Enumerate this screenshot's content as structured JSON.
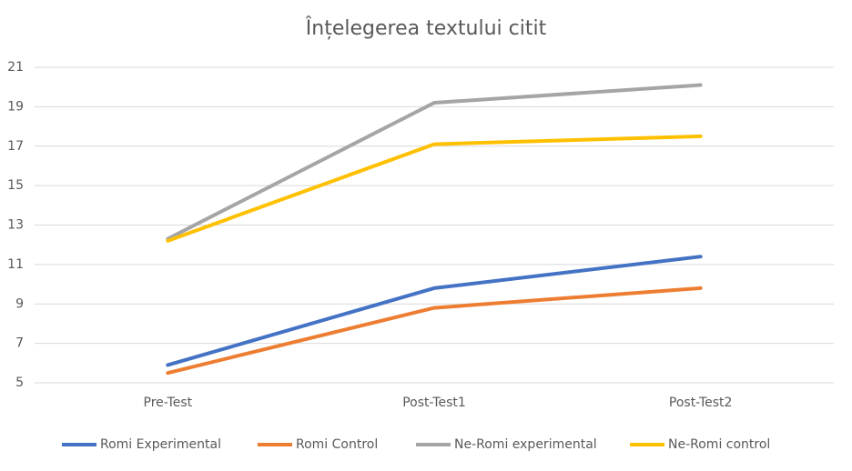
{
  "chart_data": {
    "type": "line",
    "title": "Înțelegerea textului citit",
    "categories": [
      "Pre-Test",
      "Post-Test1",
      "Post-Test2"
    ],
    "series": [
      {
        "name": "Romi Experimental",
        "color": "#4472c4",
        "values": [
          5.9,
          9.8,
          11.4
        ]
      },
      {
        "name": "Romi Control",
        "color": "#ed7d31",
        "values": [
          5.5,
          8.8,
          9.8
        ]
      },
      {
        "name": "Ne-Romi experimental",
        "color": "#a5a5a5",
        "values": [
          12.3,
          19.2,
          20.1
        ]
      },
      {
        "name": "Ne-Romi control",
        "color": "#ffc000",
        "values": [
          12.2,
          17.1,
          17.5
        ]
      }
    ],
    "ylim": [
      5,
      21
    ],
    "yticks": [
      5,
      7,
      9,
      11,
      13,
      15,
      17,
      19,
      21
    ],
    "grid": true,
    "legend": "bottom"
  }
}
